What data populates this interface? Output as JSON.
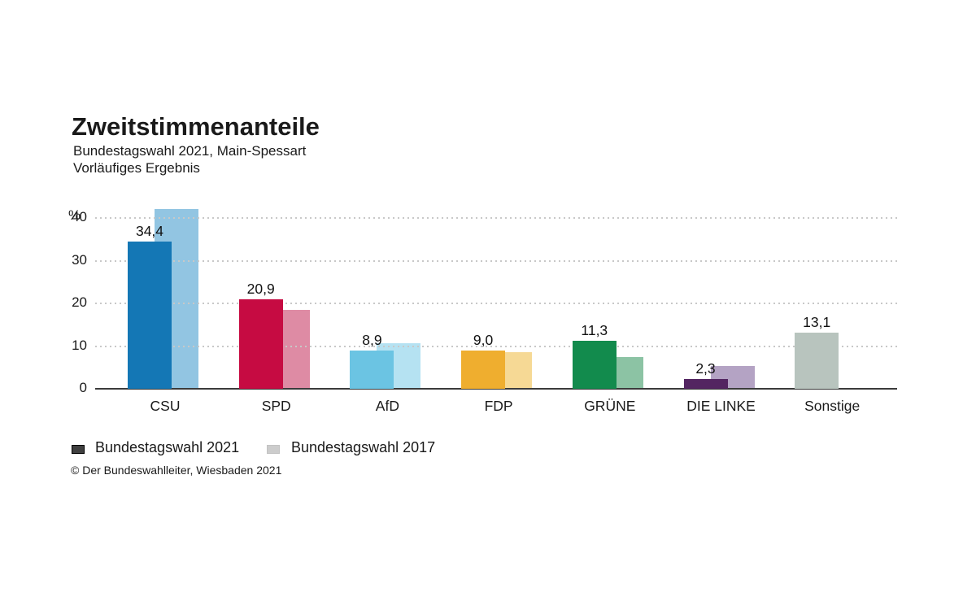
{
  "header": {
    "title": "Zweitstimmenanteile",
    "subtitle": "Bundestagswahl 2021, Main-Spessart",
    "note": "Vorläufiges Ergebnis"
  },
  "chart_data": {
    "type": "bar",
    "title": "Zweitstimmenanteile",
    "subtitle": "Bundestagswahl 2021, Main-Spessart",
    "note": "Vorläufiges Ergebnis",
    "unit": "%",
    "categories": [
      "CSU",
      "SPD",
      "AfD",
      "FDP",
      "GRÜNE",
      "DIE LINKE",
      "Sonstige"
    ],
    "series": [
      {
        "name": "Bundestagswahl 2021",
        "values": [
          34.4,
          20.9,
          8.9,
          9.0,
          11.3,
          2.3,
          13.1
        ],
        "value_labels": [
          "34,4",
          "20,9",
          "8,9",
          "9,0",
          "11,3",
          "2,3",
          "13,1"
        ],
        "colors": [
          "#1477b5",
          "#c60b42",
          "#6bc4e3",
          "#efae2f",
          "#128b4d",
          "#532561",
          "#b8c4be"
        ]
      },
      {
        "name": "Bundestagswahl 2017",
        "values": [
          42.1,
          18.5,
          10.7,
          8.6,
          7.4,
          5.4,
          null
        ],
        "value_labels": [
          null,
          null,
          null,
          null,
          null,
          null,
          null
        ],
        "colors": [
          "#92c5e2",
          "#de8ba4",
          "#b5e2f2",
          "#f6d995",
          "#8cc3a4",
          "#b4a3c4",
          null
        ]
      }
    ],
    "ylim": [
      0,
      45
    ],
    "yticks": [
      0,
      10,
      20,
      30,
      40
    ],
    "ytick_labels": [
      "0",
      "10",
      "20",
      "30",
      "40"
    ],
    "grid": "horizontal dotted",
    "legend_position": "bottom-left"
  },
  "legend": {
    "items": [
      {
        "label": "Bundestagswahl 2021",
        "swatch_color": "#404040",
        "swatch_border": "#000000"
      },
      {
        "label": "Bundestagswahl 2017",
        "swatch_color": "#cccccc",
        "swatch_border": "#c2c2c2"
      }
    ]
  },
  "footer": {
    "copyright": "© Der Bundeswahlleiter, Wiesbaden 2021"
  }
}
